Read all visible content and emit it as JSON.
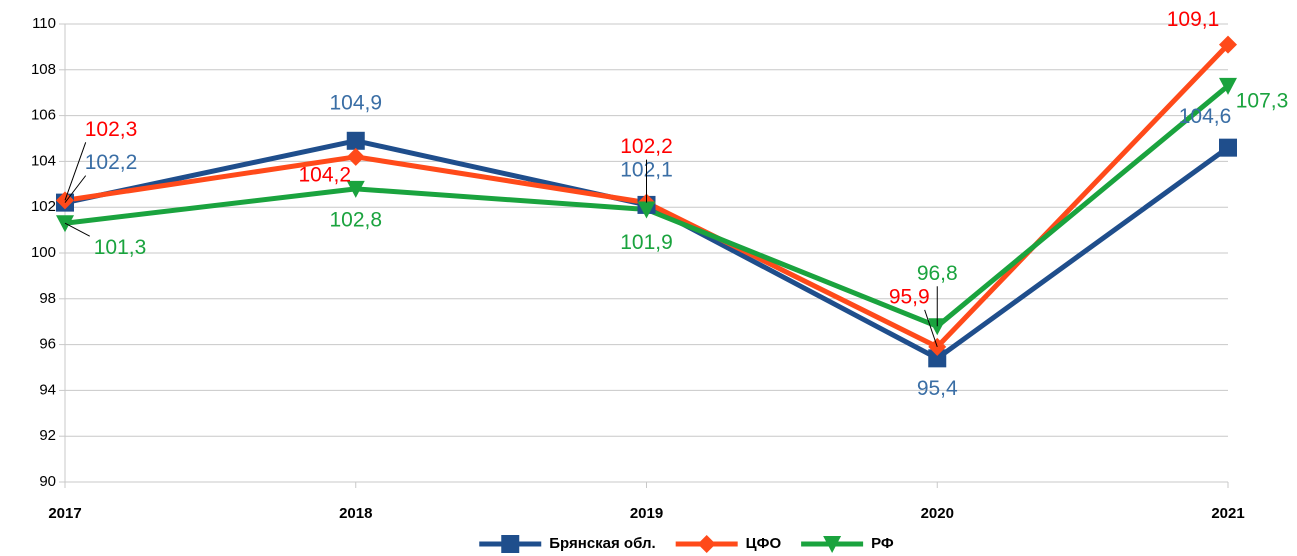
{
  "chart_data": {
    "type": "line",
    "categories": [
      "2017",
      "2018",
      "2019",
      "2020",
      "2021"
    ],
    "ylim": [
      90,
      110
    ],
    "yticks": [
      90,
      92,
      94,
      96,
      98,
      100,
      102,
      104,
      106,
      108,
      110
    ],
    "grid": true,
    "legend": "bottom",
    "series": [
      {
        "name": "Брянская обл.",
        "color": "#1f4e8c",
        "label_color": "#3a6ea5",
        "marker": "square",
        "values": [
          102.2,
          104.9,
          102.1,
          95.4,
          104.6
        ],
        "value_labels": [
          "102,2",
          "104,9",
          "102,1",
          "95,4",
          "104,6"
        ]
      },
      {
        "name": "ЦФО",
        "color": "#ff4a1a",
        "label_color": "#ff0000",
        "marker": "diamond",
        "values": [
          102.3,
          104.2,
          102.2,
          95.9,
          109.1
        ],
        "value_labels": [
          "102,3",
          "104,2",
          "102,2",
          "95,9",
          "109,1"
        ]
      },
      {
        "name": "РФ",
        "color": "#1aa33e",
        "label_color": "#1aa33e",
        "marker": "triangle-down",
        "values": [
          101.3,
          102.8,
          101.9,
          96.8,
          107.3
        ],
        "value_labels": [
          "101,3",
          "102,8",
          "101,9",
          "96,8",
          "107,3"
        ]
      }
    ]
  }
}
